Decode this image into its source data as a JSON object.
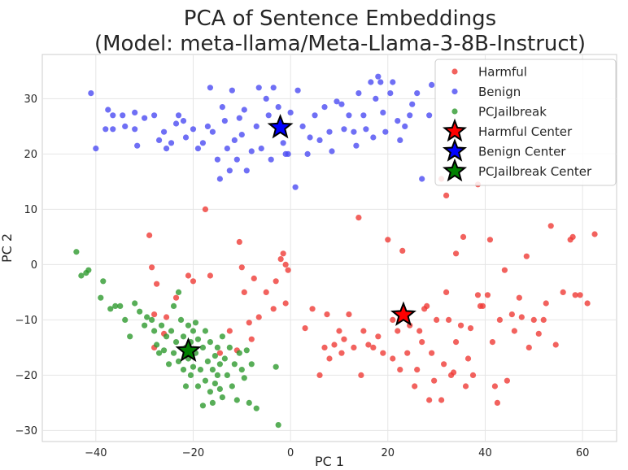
{
  "chart_data": {
    "type": "scatter",
    "title_lines": [
      "PCA of Sentence Embeddings",
      "(Model: meta-llama/Meta-Llama-3-8B-Instruct)"
    ],
    "xlabel": "PC 1",
    "ylabel": "PC 2",
    "xlim": [
      -51,
      67
    ],
    "ylim": [
      -32,
      38
    ],
    "xticks": [
      -40,
      -20,
      0,
      20,
      40,
      60
    ],
    "yticks": [
      -30,
      -20,
      -10,
      0,
      10,
      20,
      30
    ],
    "grid": true,
    "legend_position": "top-right",
    "series": [
      {
        "name": "Harmful",
        "color": "#ef3b36",
        "marker": "circle",
        "points": [
          [
            -29,
            5.3
          ],
          [
            -28.5,
            -0.5
          ],
          [
            -27.5,
            -3.5
          ],
          [
            -28,
            -9
          ],
          [
            -28,
            -15
          ],
          [
            -26,
            -12.5
          ],
          [
            -25.5,
            -9.5
          ],
          [
            -23.5,
            -6
          ],
          [
            -21,
            -2
          ],
          [
            -20,
            -3
          ],
          [
            -17.5,
            10
          ],
          [
            -16.5,
            -2
          ],
          [
            -14.5,
            -16
          ],
          [
            -12.5,
            -12
          ],
          [
            -11,
            -15.5
          ],
          [
            -10.5,
            4.1
          ],
          [
            -10,
            -0.5
          ],
          [
            -9.5,
            -5
          ],
          [
            -8.5,
            -10.5
          ],
          [
            -8,
            -13.5
          ],
          [
            -7.5,
            -2.5
          ],
          [
            -6.5,
            -9.5
          ],
          [
            -5,
            -5
          ],
          [
            -3.5,
            -8
          ],
          [
            -3,
            -3
          ],
          [
            -2,
            1
          ],
          [
            -1.5,
            2
          ],
          [
            -1,
            0
          ],
          [
            -0.5,
            -1
          ],
          [
            -1,
            -7
          ],
          [
            3,
            -11.5
          ],
          [
            4.5,
            -8
          ],
          [
            6,
            -20
          ],
          [
            7,
            -15
          ],
          [
            7.5,
            -9
          ],
          [
            8,
            -17
          ],
          [
            9,
            -14.5
          ],
          [
            10,
            -12
          ],
          [
            10.5,
            -16
          ],
          [
            11,
            -13.5
          ],
          [
            12,
            -9
          ],
          [
            13,
            -15
          ],
          [
            14,
            8.5
          ],
          [
            14.5,
            -20
          ],
          [
            15,
            -12
          ],
          [
            16,
            -14.5
          ],
          [
            17,
            -15
          ],
          [
            18,
            -13
          ],
          [
            19,
            -16
          ],
          [
            20,
            4.5
          ],
          [
            21,
            -10
          ],
          [
            21,
            -17
          ],
          [
            22,
            -12
          ],
          [
            22.5,
            -19
          ],
          [
            23,
            2.5
          ],
          [
            24,
            -16
          ],
          [
            24.5,
            -11
          ],
          [
            25.5,
            -22
          ],
          [
            26,
            -19
          ],
          [
            26.5,
            -12
          ],
          [
            27,
            -14
          ],
          [
            27.5,
            -8
          ],
          [
            28,
            -7.5
          ],
          [
            28.5,
            -24.5
          ],
          [
            29,
            -16
          ],
          [
            29.5,
            -21
          ],
          [
            30,
            -10
          ],
          [
            31,
            -24.5
          ],
          [
            31.5,
            -18
          ],
          [
            32,
            -5
          ],
          [
            32,
            12.5
          ],
          [
            32.5,
            -10
          ],
          [
            33,
            -20
          ],
          [
            33.5,
            -19.5
          ],
          [
            34,
            -14
          ],
          [
            34,
            2
          ],
          [
            35,
            -11
          ],
          [
            35.5,
            5
          ],
          [
            36,
            -22
          ],
          [
            36.5,
            -17
          ],
          [
            37,
            -11.5
          ],
          [
            37.5,
            -20
          ],
          [
            38.5,
            -5.5
          ],
          [
            39,
            -7.5
          ],
          [
            39.5,
            -7.5
          ],
          [
            40.5,
            -5.5
          ],
          [
            41,
            4.5
          ],
          [
            41.5,
            -14
          ],
          [
            42,
            -22
          ],
          [
            42.5,
            -25
          ],
          [
            43,
            -10
          ],
          [
            44,
            -1
          ],
          [
            44.5,
            -21
          ],
          [
            45.5,
            -9
          ],
          [
            46,
            -12
          ],
          [
            47,
            -6
          ],
          [
            47.5,
            -9.5
          ],
          [
            48.5,
            1.5
          ],
          [
            49,
            -15
          ],
          [
            50,
            -10
          ],
          [
            51,
            -12.5
          ],
          [
            52,
            -10
          ],
          [
            52.5,
            -7
          ],
          [
            53.5,
            7
          ],
          [
            54.5,
            -14.5
          ],
          [
            56,
            -5
          ],
          [
            57.5,
            4.5
          ],
          [
            58,
            5
          ],
          [
            58.5,
            -5.5
          ],
          [
            59.5,
            -5.5
          ],
          [
            61,
            -7
          ],
          [
            62.5,
            5.5
          ],
          [
            38.5,
            14.5
          ],
          [
            31,
            15.5
          ]
        ]
      },
      {
        "name": "Benign",
        "color": "#4b4bf2",
        "marker": "circle",
        "points": [
          [
            -41,
            31
          ],
          [
            -40,
            21
          ],
          [
            -38,
            24.5
          ],
          [
            -37.5,
            28
          ],
          [
            -36.5,
            27
          ],
          [
            -36.5,
            24.5
          ],
          [
            -34.5,
            27
          ],
          [
            -34,
            25
          ],
          [
            -32,
            27.5
          ],
          [
            -32,
            24.5
          ],
          [
            -31.5,
            21.5
          ],
          [
            -30,
            26.5
          ],
          [
            -28,
            27
          ],
          [
            -27,
            22.5
          ],
          [
            -26,
            24
          ],
          [
            -25.5,
            21
          ],
          [
            -24.5,
            22
          ],
          [
            -23.5,
            25.5
          ],
          [
            -23,
            27
          ],
          [
            -22,
            26
          ],
          [
            -21.5,
            23
          ],
          [
            -20,
            24.5
          ],
          [
            -19,
            21
          ],
          [
            -18,
            22
          ],
          [
            -17,
            25
          ],
          [
            -16.5,
            32
          ],
          [
            -16,
            24
          ],
          [
            -15,
            19
          ],
          [
            -14.5,
            15.5
          ],
          [
            -14,
            28.5
          ],
          [
            -13.5,
            26
          ],
          [
            -13,
            21
          ],
          [
            -12.5,
            17
          ],
          [
            -12,
            31.5
          ],
          [
            -11.5,
            22.5
          ],
          [
            -11,
            19
          ],
          [
            -10.5,
            26.5
          ],
          [
            -10,
            23.5
          ],
          [
            -9.5,
            28
          ],
          [
            -9,
            17
          ],
          [
            -8,
            20.5
          ],
          [
            -7,
            25
          ],
          [
            -6.5,
            32
          ],
          [
            -6,
            21
          ],
          [
            -5,
            30
          ],
          [
            -4.5,
            27
          ],
          [
            -4,
            19
          ],
          [
            -3.5,
            32
          ],
          [
            -2.5,
            28.5
          ],
          [
            -1.5,
            22
          ],
          [
            -1,
            20
          ],
          [
            -0.5,
            20
          ],
          [
            0,
            27.5
          ],
          [
            1,
            14
          ],
          [
            1.5,
            31.5
          ],
          [
            2.5,
            25
          ],
          [
            3.5,
            20
          ],
          [
            4,
            23
          ],
          [
            5,
            27
          ],
          [
            6,
            22.5
          ],
          [
            7,
            28.5
          ],
          [
            8,
            24
          ],
          [
            8.5,
            20.5
          ],
          [
            9.5,
            29.5
          ],
          [
            10.5,
            29
          ],
          [
            11,
            24.5
          ],
          [
            12,
            27
          ],
          [
            13,
            24
          ],
          [
            13.5,
            21.5
          ],
          [
            14,
            31
          ],
          [
            15,
            27
          ],
          [
            15.5,
            24.5
          ],
          [
            16.5,
            33
          ],
          [
            17,
            23
          ],
          [
            17.5,
            30
          ],
          [
            18,
            34
          ],
          [
            18.5,
            33
          ],
          [
            19,
            27.5
          ],
          [
            19.5,
            24
          ],
          [
            20.5,
            31
          ],
          [
            21,
            33
          ],
          [
            22,
            26
          ],
          [
            22.5,
            22.5
          ],
          [
            23.5,
            25
          ],
          [
            24.5,
            27
          ],
          [
            25,
            29
          ],
          [
            26,
            31
          ],
          [
            27,
            15.5
          ],
          [
            28.5,
            27
          ],
          [
            29,
            32.5
          ]
        ]
      },
      {
        "name": "PCJailbreak",
        "color": "#2e9a2e",
        "marker": "circle",
        "points": [
          [
            -44,
            2.3
          ],
          [
            -43,
            -2
          ],
          [
            -42,
            -1.5
          ],
          [
            -41.5,
            -1
          ],
          [
            -39,
            -6
          ],
          [
            -38.5,
            -3
          ],
          [
            -37,
            -8
          ],
          [
            -36,
            -7.5
          ],
          [
            -35,
            -7.5
          ],
          [
            -34,
            -10
          ],
          [
            -33,
            -13
          ],
          [
            -32,
            -7
          ],
          [
            -31,
            -8.5
          ],
          [
            -30,
            -11
          ],
          [
            -29.5,
            -9.5
          ],
          [
            -28.5,
            -10
          ],
          [
            -28,
            -12
          ],
          [
            -27.5,
            -14.5
          ],
          [
            -27,
            -16
          ],
          [
            -26.5,
            -11
          ],
          [
            -26,
            -15.5
          ],
          [
            -25.5,
            -13
          ],
          [
            -25,
            -18
          ],
          [
            -24.5,
            -12
          ],
          [
            -24,
            -7.5
          ],
          [
            -24,
            -16
          ],
          [
            -23.5,
            -14
          ],
          [
            -23,
            -5
          ],
          [
            -23,
            -17.5
          ],
          [
            -22.5,
            -10
          ],
          [
            -22,
            -13
          ],
          [
            -22,
            -19
          ],
          [
            -21.5,
            -15
          ],
          [
            -21.5,
            -22
          ],
          [
            -21,
            -11
          ],
          [
            -21,
            -17
          ],
          [
            -20.5,
            -14
          ],
          [
            -20.5,
            -20
          ],
          [
            -20,
            -12
          ],
          [
            -20,
            -18.5
          ],
          [
            -19.5,
            -10.5
          ],
          [
            -19.5,
            -16
          ],
          [
            -19,
            -13.5
          ],
          [
            -19,
            -22
          ],
          [
            -18.5,
            -19
          ],
          [
            -18,
            -15
          ],
          [
            -18,
            -25.5
          ],
          [
            -17.5,
            -12
          ],
          [
            -17.5,
            -21
          ],
          [
            -17,
            -17.5
          ],
          [
            -16.5,
            -14
          ],
          [
            -16.5,
            -23
          ],
          [
            -16,
            -19
          ],
          [
            -16,
            -25
          ],
          [
            -15.5,
            -16.5
          ],
          [
            -15.5,
            -21.5
          ],
          [
            -15,
            -15
          ],
          [
            -15,
            -20
          ],
          [
            -14.5,
            -18
          ],
          [
            -14.5,
            -22.5
          ],
          [
            -14,
            -13
          ],
          [
            -14,
            -24
          ],
          [
            -13.5,
            -17
          ],
          [
            -13,
            -20
          ],
          [
            -12.5,
            -15
          ],
          [
            -12,
            -22
          ],
          [
            -11.5,
            -18
          ],
          [
            -11,
            -24.5
          ],
          [
            -10.5,
            -16
          ],
          [
            -10,
            -19
          ],
          [
            -9.5,
            -20.5
          ],
          [
            -9,
            -15.5
          ],
          [
            -8.5,
            -25
          ],
          [
            -8,
            -18
          ],
          [
            -7,
            -26
          ],
          [
            -2.5,
            -29
          ],
          [
            -3,
            -18.5
          ]
        ]
      },
      {
        "name": "Harmful Center",
        "color": "#ff0000",
        "marker": "star",
        "points": [
          [
            23.2,
            -9.1
          ]
        ]
      },
      {
        "name": "Benign Center",
        "color": "#0000ff",
        "marker": "star",
        "points": [
          [
            -2.1,
            24.8
          ]
        ]
      },
      {
        "name": "PCJailbreak Center",
        "color": "#008000",
        "marker": "star",
        "points": [
          [
            -21.0,
            -15.6
          ]
        ]
      }
    ]
  }
}
